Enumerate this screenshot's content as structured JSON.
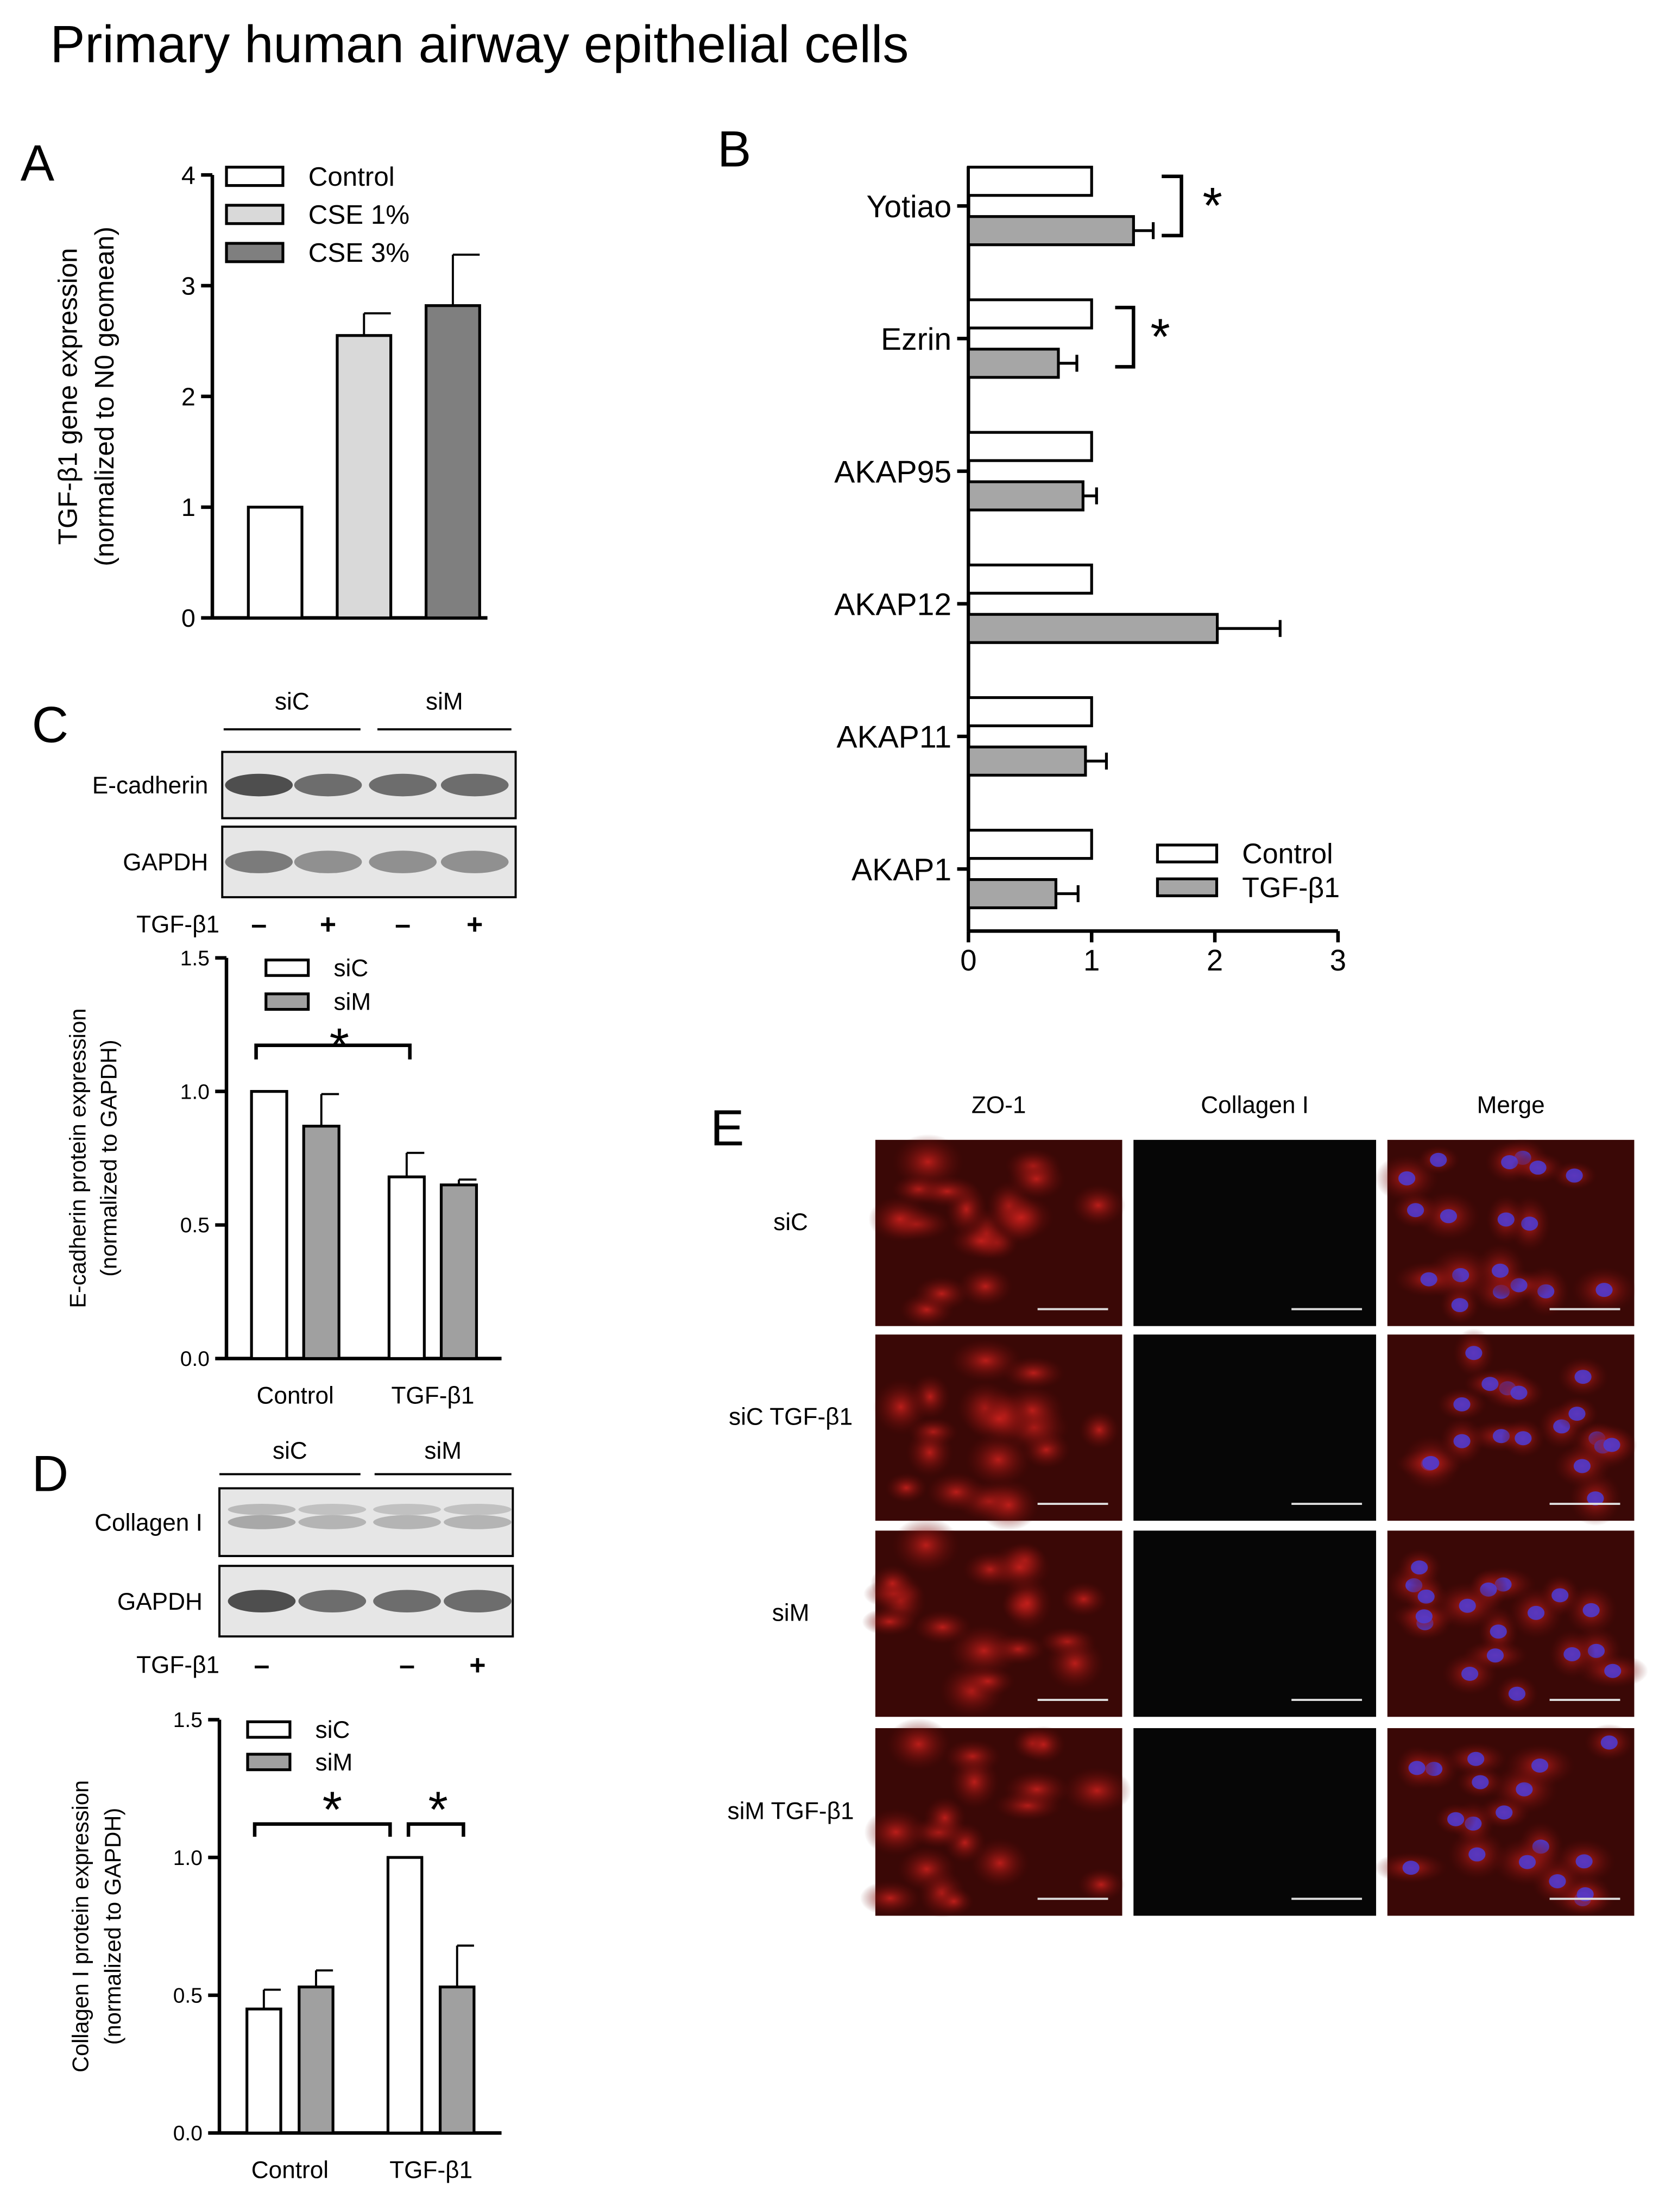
{
  "title": "Primary human airway epithelial cells",
  "chart_data": [
    {
      "type": "bar",
      "panel": "A",
      "ylabel": [
        "TGF-β1 gene expression",
        "(normalized to N0 geomean)"
      ],
      "categories": [
        null
      ],
      "series": [
        {
          "name": "Control",
          "color": "#ffffff",
          "values": [
            1.0
          ],
          "errors": [
            0
          ]
        },
        {
          "name": "CSE 1%",
          "color": "#d9d9d9",
          "values": [
            2.55
          ],
          "errors": [
            0.2
          ]
        },
        {
          "name": "CSE 3%",
          "color": "#7f7f7f",
          "values": [
            2.82
          ],
          "errors": [
            0.46
          ]
        }
      ],
      "ylim": [
        0,
        4
      ],
      "yticks": [
        0,
        1,
        2,
        3,
        4
      ]
    },
    {
      "type": "barh",
      "panel": "B",
      "categories": [
        "Yotiao",
        "Ezrin",
        "AKAP95",
        "AKAP12",
        "AKAP11",
        "AKAP1"
      ],
      "series": [
        {
          "name": "Control",
          "color": "#ffffff",
          "values": [
            1,
            1,
            1,
            1,
            1,
            1
          ]
        },
        {
          "name": "TGF-β1",
          "color": "#a6a6a6",
          "values": [
            1.34,
            0.73,
            0.93,
            2.02,
            0.95,
            0.71
          ],
          "errors": [
            0.16,
            0.15,
            0.11,
            0.51,
            0.17,
            0.18
          ]
        }
      ],
      "xlim": [
        0,
        3
      ],
      "xticks": [
        0,
        1,
        2,
        3
      ],
      "annotations": [
        "*",
        "*"
      ]
    },
    {
      "type": "bar",
      "ylabel": [
        "E-cadherin protein expression",
        "(normalized to GAPDH)"
      ],
      "categories": [
        "Control",
        "TGF-β1"
      ],
      "series": [
        {
          "name": "siC",
          "color": "#ffffff",
          "values": [
            1.0,
            0.68
          ],
          "errors": [
            0,
            0.09
          ]
        },
        {
          "name": "siM",
          "color": "#a0a0a0",
          "values": [
            0.87,
            0.65
          ],
          "errors": [
            0.12,
            0.02
          ]
        }
      ],
      "ylim": [
        0,
        1.5
      ],
      "yticks": [
        {
          "value": 0,
          "label": "0.0"
        },
        {
          "value": 0.5,
          "label": "0.5"
        },
        {
          "value": 1,
          "label": "1.0"
        },
        {
          "value": 1.5,
          "label": "1.5"
        }
      ],
      "annotations": [
        "*"
      ]
    },
    {
      "type": "bar",
      "ylabel": [
        "Collagen I protein expression",
        "(normalized to GAPDH)"
      ],
      "categories": [
        "Control",
        "TGF-β1"
      ],
      "series": [
        {
          "name": "siC",
          "color": "#ffffff",
          "values": [
            0.45,
            1.0
          ],
          "errors": [
            0.07,
            0
          ]
        },
        {
          "name": "siM",
          "color": "#a0a0a0",
          "values": [
            0.53,
            0.53
          ],
          "errors": [
            0.06,
            0.15
          ]
        }
      ],
      "ylim": [
        0,
        1.5
      ],
      "yticks": [
        {
          "value": 0,
          "label": "0.0"
        },
        {
          "value": 0.5,
          "label": "0.5"
        },
        {
          "value": 1,
          "label": "1.0"
        },
        {
          "value": 1.5,
          "label": "1.5"
        }
      ],
      "annotations": [
        "*",
        "*"
      ]
    }
  ],
  "blots": [
    {
      "panel": "C",
      "groups": [
        "siC",
        "siM"
      ],
      "rows": [
        "E-cadherin",
        "GAPDH"
      ],
      "treatment": "TGF-β1",
      "lanes": [
        "–",
        "+",
        "–",
        "+"
      ]
    },
    {
      "panel": "D",
      "groups": [
        "siC",
        "siM"
      ],
      "rows": [
        "Collagen I",
        "GAPDH"
      ],
      "treatment": "TGF-β1",
      "lanes": [
        "–",
        null,
        "–",
        "+"
      ]
    }
  ],
  "microscopy": {
    "panel": "E",
    "columns": [
      "ZO-1",
      "Collagen I",
      "Merge"
    ],
    "rows": [
      "siC",
      "siC TGF-β1",
      "siM",
      "siM TGF-β1"
    ]
  }
}
